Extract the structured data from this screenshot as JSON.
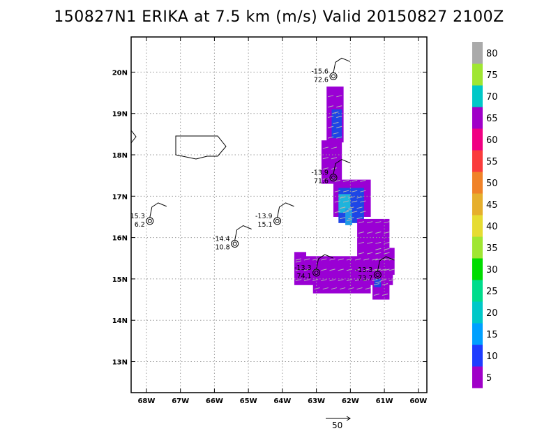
{
  "chart_data": {
    "type": "heatmap",
    "title": "150827N1 ERIKA at 7.5 km (m/s) Valid 20150827 2100Z",
    "x_ticks": [
      {
        "lon": -68,
        "label": "68W"
      },
      {
        "lon": -67,
        "label": "67W"
      },
      {
        "lon": -66,
        "label": "66W"
      },
      {
        "lon": -65,
        "label": "65W"
      },
      {
        "lon": -64,
        "label": "64W"
      },
      {
        "lon": -63,
        "label": "63W"
      },
      {
        "lon": -62,
        "label": "62W"
      },
      {
        "lon": -61,
        "label": "61W"
      },
      {
        "lon": -60,
        "label": "60W"
      }
    ],
    "y_ticks": [
      {
        "lat": 13,
        "label": "13N"
      },
      {
        "lat": 14,
        "label": "14N"
      },
      {
        "lat": 15,
        "label": "15N"
      },
      {
        "lat": 16,
        "label": "16N"
      },
      {
        "lat": 17,
        "label": "17N"
      },
      {
        "lat": 18,
        "label": "18N"
      },
      {
        "lat": 19,
        "label": "19N"
      },
      {
        "lat": 20,
        "label": "20N"
      }
    ],
    "xlim": [
      -68.45,
      -59.75
    ],
    "ylim": [
      12.25,
      20.85
    ],
    "grid": true,
    "colorbar": {
      "labels": [
        "5",
        "10",
        "15",
        "20",
        "25",
        "30",
        "35",
        "40",
        "45",
        "50",
        "55",
        "60",
        "65",
        "70",
        "75",
        "80"
      ],
      "colors": [
        "#a000c8",
        "#1e3cff",
        "#00a0ff",
        "#00c8c8",
        "#00dc8c",
        "#00dc00",
        "#a0e632",
        "#e6dc32",
        "#e6af2d",
        "#f08228",
        "#fa3c3c",
        "#f00082",
        "#a000c8",
        "#00c8c8",
        "#a0e632",
        "#aaaaaa"
      ]
    },
    "swath": {
      "colors": {
        "purple": "#9a00d4",
        "blue": "#1e46e6",
        "lightblue": "#1e9be6",
        "cyan": "#1eb4dc"
      },
      "regions": [
        {
          "color": "purple",
          "lon": [
            -62.7,
            -62.2
          ],
          "lat": [
            18.3,
            19.65
          ]
        },
        {
          "color": "blue",
          "lon": [
            -62.55,
            -62.25
          ],
          "lat": [
            18.4,
            19.1
          ]
        },
        {
          "color": "purple",
          "lon": [
            -62.85,
            -62.25
          ],
          "lat": [
            17.3,
            18.35
          ]
        },
        {
          "color": "purple",
          "lon": [
            -62.5,
            -61.4
          ],
          "lat": [
            16.5,
            17.4
          ]
        },
        {
          "color": "blue",
          "lon": [
            -62.35,
            -61.6
          ],
          "lat": [
            16.35,
            17.2
          ]
        },
        {
          "color": "cyan",
          "lon": [
            -62.35,
            -62.0
          ],
          "lat": [
            16.6,
            17.05
          ]
        },
        {
          "color": "lightblue",
          "lon": [
            -62.15,
            -61.95
          ],
          "lat": [
            16.3,
            16.7
          ]
        },
        {
          "color": "purple",
          "lon": [
            -61.8,
            -60.85
          ],
          "lat": [
            15.5,
            16.45
          ]
        },
        {
          "color": "purple",
          "lon": [
            -61.3,
            -60.7
          ],
          "lat": [
            15.1,
            15.75
          ]
        },
        {
          "color": "purple",
          "lon": [
            -63.65,
            -60.75
          ],
          "lat": [
            14.85,
            15.55
          ]
        },
        {
          "color": "purple",
          "lon": [
            -63.1,
            -61.4
          ],
          "lat": [
            14.65,
            15.0
          ]
        },
        {
          "color": "purple",
          "lon": [
            -61.35,
            -60.85
          ],
          "lat": [
            14.5,
            15.1
          ]
        },
        {
          "color": "blue",
          "lon": [
            -61.3,
            -61.1
          ],
          "lat": [
            14.8,
            15.0
          ]
        },
        {
          "color": "purple",
          "lon": [
            -63.65,
            -63.3
          ],
          "lat": [
            15.3,
            15.65
          ]
        }
      ]
    },
    "stations": [
      {
        "lon": -62.5,
        "lat": 19.9,
        "top": "-15.6",
        "bottom": "72.6",
        "side": "left"
      },
      {
        "lon": -62.5,
        "lat": 17.45,
        "top": "-13.9",
        "bottom": "71.6",
        "side": "left"
      },
      {
        "lon": -63.0,
        "lat": 15.15,
        "top": "-13.3",
        "bottom": "74.1",
        "side": "left"
      },
      {
        "lon": -61.2,
        "lat": 15.1,
        "top": "-13.3",
        "bottom": "73.7",
        "side": "left"
      },
      {
        "lon": -64.15,
        "lat": 16.4,
        "top": "-13.9",
        "bottom": "15.1",
        "side": "left"
      },
      {
        "lon": -65.4,
        "lat": 15.85,
        "top": "-14.4",
        "bottom": "10.8",
        "side": "left"
      },
      {
        "lon": -67.9,
        "lat": 16.4,
        "top": "15.3",
        "bottom": "6.2",
        "side": "left"
      }
    ],
    "reference_vector": {
      "label": "50"
    }
  }
}
